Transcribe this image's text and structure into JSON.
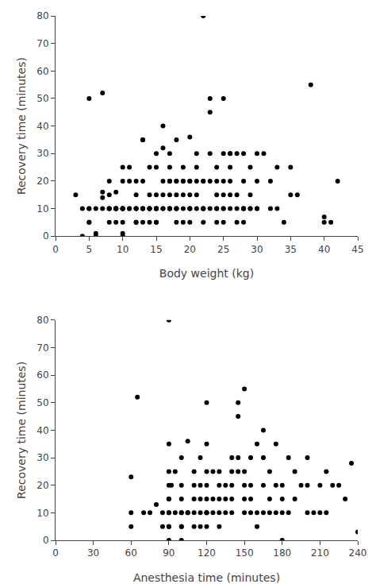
{
  "chart_data": [
    {
      "type": "scatter",
      "xlabel": "Body weight (kg)",
      "ylabel": "Recovery time (minutes)",
      "xlim": [
        0,
        45
      ],
      "ylim": [
        0,
        80
      ],
      "xticks": [
        0,
        5,
        10,
        15,
        20,
        25,
        30,
        35,
        40,
        45
      ],
      "yticks": [
        0,
        10,
        20,
        30,
        40,
        50,
        60,
        70,
        80
      ],
      "color": "#000000",
      "grid": false,
      "x": [
        3,
        4,
        4,
        5,
        5,
        5,
        5,
        5,
        6,
        6,
        6,
        7,
        7,
        7,
        7,
        8,
        8,
        8,
        8,
        8,
        8,
        9,
        9,
        9,
        9,
        9,
        9,
        9,
        10,
        10,
        10,
        10,
        10,
        10,
        10,
        10,
        10,
        10,
        11,
        11,
        11,
        11,
        12,
        12,
        12,
        12,
        12,
        12,
        12,
        13,
        13,
        13,
        13,
        13,
        13,
        13,
        14,
        14,
        14,
        14,
        14,
        14,
        14,
        15,
        15,
        15,
        15,
        15,
        15,
        15,
        15,
        15,
        16,
        16,
        16,
        16,
        16,
        16,
        17,
        17,
        17,
        17,
        17,
        17,
        17,
        17,
        18,
        18,
        18,
        18,
        18,
        18,
        18,
        18,
        19,
        19,
        19,
        19,
        19,
        19,
        20,
        20,
        20,
        20,
        20,
        20,
        20,
        20,
        21,
        21,
        21,
        21,
        21,
        22,
        22,
        22,
        22,
        22,
        22,
        22,
        23,
        23,
        23,
        23,
        23,
        24,
        24,
        24,
        24,
        24,
        24,
        25,
        25,
        25,
        25,
        25,
        25,
        25,
        26,
        26,
        26,
        26,
        26,
        26,
        27,
        27,
        27,
        27,
        28,
        28,
        28,
        28,
        28,
        28,
        29,
        29,
        29,
        29,
        30,
        30,
        30,
        30,
        31,
        32,
        32,
        33,
        33,
        34,
        35,
        35,
        36,
        38,
        40,
        40,
        41,
        42
      ],
      "values": [
        15,
        0,
        10,
        50,
        5,
        10,
        5,
        10,
        0,
        1,
        10,
        52,
        16,
        10,
        14,
        5,
        10,
        10,
        20,
        10,
        15,
        5,
        10,
        10,
        10,
        10,
        10,
        16,
        0,
        1,
        5,
        10,
        10,
        10,
        10,
        10,
        25,
        20,
        10,
        10,
        20,
        25,
        5,
        5,
        10,
        10,
        10,
        15,
        20,
        5,
        10,
        10,
        10,
        20,
        35,
        35,
        5,
        10,
        10,
        10,
        10,
        15,
        25,
        5,
        5,
        10,
        10,
        10,
        10,
        15,
        25,
        30,
        10,
        10,
        15,
        20,
        32,
        40,
        10,
        10,
        10,
        15,
        20,
        20,
        25,
        30,
        5,
        10,
        10,
        10,
        15,
        20,
        20,
        35,
        5,
        10,
        15,
        20,
        20,
        25,
        5,
        10,
        10,
        10,
        15,
        20,
        20,
        36,
        10,
        15,
        20,
        25,
        30,
        5,
        10,
        10,
        10,
        20,
        20,
        80,
        10,
        20,
        30,
        45,
        50,
        5,
        10,
        10,
        15,
        20,
        25,
        5,
        10,
        10,
        15,
        20,
        30,
        50,
        10,
        15,
        20,
        25,
        30,
        30,
        5,
        10,
        15,
        30,
        5,
        10,
        10,
        10,
        20,
        30,
        10,
        10,
        15,
        25,
        10,
        10,
        20,
        30,
        30,
        10,
        20,
        10,
        25,
        5,
        15,
        25,
        15,
        55,
        5,
        7,
        5,
        20
      ]
    },
    {
      "type": "scatter",
      "xlabel": "Anesthesia time (minutes)",
      "ylabel": "Recovery time (minutes)",
      "xlim": [
        0,
        240
      ],
      "ylim": [
        0,
        80
      ],
      "xticks": [
        0,
        30,
        60,
        90,
        120,
        150,
        180,
        210,
        240
      ],
      "yticks": [
        0,
        10,
        20,
        30,
        40,
        50,
        60,
        70,
        80
      ],
      "color": "#000000",
      "grid": false,
      "x": [
        60,
        60,
        60,
        65,
        70,
        75,
        80,
        85,
        85,
        90,
        90,
        90,
        90,
        90,
        90,
        90,
        90,
        90,
        90,
        90,
        92,
        95,
        95,
        100,
        100,
        100,
        100,
        100,
        100,
        100,
        100,
        105,
        105,
        105,
        110,
        110,
        110,
        110,
        110,
        115,
        115,
        115,
        115,
        115,
        120,
        120,
        120,
        120,
        120,
        120,
        120,
        120,
        120,
        125,
        125,
        125,
        130,
        130,
        130,
        130,
        130,
        135,
        135,
        135,
        140,
        140,
        140,
        140,
        140,
        145,
        145,
        145,
        145,
        150,
        150,
        150,
        150,
        150,
        155,
        155,
        155,
        155,
        160,
        160,
        160,
        165,
        165,
        165,
        165,
        170,
        170,
        170,
        175,
        175,
        175,
        180,
        180,
        180,
        180,
        185,
        185,
        190,
        190,
        195,
        200,
        200,
        200,
        205,
        210,
        210,
        215,
        215,
        220,
        225,
        230,
        235,
        240
      ],
      "values": [
        23,
        10,
        5,
        52,
        10,
        10,
        13,
        5,
        10,
        80,
        0,
        5,
        5,
        10,
        10,
        15,
        15,
        20,
        25,
        35,
        20,
        10,
        25,
        0,
        5,
        5,
        10,
        10,
        15,
        20,
        30,
        10,
        10,
        36,
        5,
        10,
        15,
        20,
        25,
        5,
        10,
        15,
        20,
        30,
        5,
        10,
        10,
        10,
        15,
        20,
        25,
        35,
        50,
        10,
        15,
        25,
        5,
        10,
        15,
        20,
        25,
        10,
        15,
        20,
        10,
        15,
        20,
        25,
        30,
        25,
        30,
        45,
        50,
        10,
        15,
        20,
        25,
        55,
        10,
        15,
        20,
        30,
        5,
        10,
        35,
        10,
        20,
        30,
        40,
        10,
        15,
        25,
        10,
        20,
        35,
        0,
        10,
        15,
        20,
        10,
        30,
        15,
        25,
        20,
        10,
        20,
        30,
        10,
        10,
        20,
        10,
        25,
        20,
        20,
        15,
        28,
        3
      ]
    }
  ]
}
